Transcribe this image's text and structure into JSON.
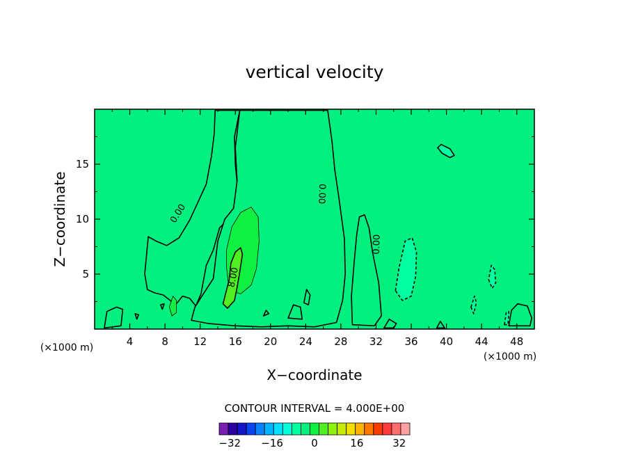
{
  "chart_data": {
    "type": "heatmap",
    "title": "vertical velocity",
    "xlabel": "X−coordinate",
    "ylabel": "Z−coordinate",
    "x_unit": "(×1000 m)",
    "y_unit": "(×1000 m)",
    "xlim": [
      0,
      50
    ],
    "ylim": [
      0,
      20
    ],
    "x_ticks": [
      4,
      8,
      12,
      16,
      20,
      24,
      28,
      32,
      36,
      40,
      44,
      48
    ],
    "y_ticks": [
      5,
      10,
      15
    ],
    "contour_interval_text": "CONTOUR INTERVAL = 4.000E+00",
    "contour_labels": [
      "0.00",
      "0.00",
      "0.00",
      "8.00"
    ],
    "colorbar": {
      "min": -36,
      "max": 36,
      "step": 4,
      "tick_values": [
        -32,
        -16,
        0,
        16,
        32
      ],
      "tick_labels": [
        "−32",
        "−16",
        "0",
        "16",
        "32"
      ],
      "colors": [
        "#7a1fb0",
        "#2a00a0",
        "#1414c8",
        "#0a46f0",
        "#0a82ff",
        "#00b4ff",
        "#00e0ff",
        "#00ffd8",
        "#00ffa0",
        "#00f080",
        "#10f040",
        "#50f020",
        "#90f010",
        "#c8ec00",
        "#f0e000",
        "#ffb400",
        "#ff7800",
        "#ff3c00",
        "#ff3c3c",
        "#ff6e6e",
        "#ffa0a0"
      ]
    },
    "field": {
      "background_value": 0,
      "features": [
        {
          "kind": "region",
          "value": 2,
          "outline": "solid",
          "points": [
            [
              16.5,
              19.9
            ],
            [
              15.9,
              17.5
            ],
            [
              16.0,
              15.0
            ],
            [
              16.3,
              12.5
            ],
            [
              16.0,
              11.0
            ],
            [
              15.2,
              10.0
            ],
            [
              14.2,
              9.2
            ],
            [
              13.5,
              7.2
            ],
            [
              12.7,
              5.8
            ],
            [
              12.1,
              3.2
            ],
            [
              11.5,
              2.1
            ],
            [
              10.8,
              2.8
            ],
            [
              10.0,
              3.0
            ],
            [
              9.2,
              2.2
            ],
            [
              8.6,
              2.6
            ],
            [
              7.8,
              3.1
            ],
            [
              6.8,
              3.3
            ],
            [
              6.0,
              3.6
            ],
            [
              5.7,
              5.0
            ],
            [
              6.1,
              8.4
            ],
            [
              7.0,
              8.0
            ],
            [
              8.2,
              7.6
            ],
            [
              9.6,
              8.3
            ],
            [
              10.8,
              9.9
            ],
            [
              11.9,
              11.8
            ],
            [
              12.7,
              13.2
            ],
            [
              13.3,
              15.8
            ],
            [
              13.6,
              17.8
            ],
            [
              13.7,
              19.9
            ]
          ]
        },
        {
          "kind": "region",
          "value": 2,
          "outline": "solid",
          "points": [
            [
              26.5,
              19.9
            ],
            [
              27.0,
              17.0
            ],
            [
              27.3,
              14.5
            ],
            [
              27.8,
              11.8
            ],
            [
              28.4,
              8.2
            ],
            [
              28.5,
              5.0
            ],
            [
              28.2,
              2.6
            ],
            [
              27.5,
              0.6
            ],
            [
              25.0,
              0.2
            ],
            [
              22.0,
              0.3
            ],
            [
              19.0,
              0.2
            ],
            [
              16.0,
              0.3
            ],
            [
              13.0,
              0.5
            ],
            [
              11.0,
              0.8
            ],
            [
              11.4,
              2.0
            ],
            [
              12.2,
              3.0
            ],
            [
              13.5,
              4.6
            ],
            [
              14.0,
              8.0
            ],
            [
              14.8,
              10.0
            ],
            [
              15.8,
              11.0
            ],
            [
              16.2,
              13.5
            ],
            [
              16.0,
              16.5
            ],
            [
              16.5,
              19.9
            ]
          ]
        },
        {
          "kind": "region",
          "value": 2,
          "outline": "solid",
          "points": [
            [
              30.1,
              10.2
            ],
            [
              29.8,
              8.6
            ],
            [
              29.5,
              6.0
            ],
            [
              29.2,
              3.0
            ],
            [
              29.3,
              0.4
            ],
            [
              31.8,
              0.3
            ],
            [
              32.6,
              1.2
            ],
            [
              32.3,
              4.2
            ],
            [
              31.6,
              7.0
            ],
            [
              31.2,
              9.2
            ],
            [
              30.7,
              10.4
            ]
          ]
        },
        {
          "kind": "region",
          "value": 6,
          "outline": "thin",
          "points": [
            [
              15.2,
              4.2
            ],
            [
              15.8,
              3.4
            ],
            [
              16.6,
              3.2
            ],
            [
              17.8,
              4.0
            ],
            [
              18.4,
              5.5
            ],
            [
              18.7,
              8.0
            ],
            [
              18.6,
              10.2
            ],
            [
              17.8,
              11.1
            ],
            [
              16.6,
              10.6
            ],
            [
              15.6,
              9.3
            ],
            [
              15.0,
              7.2
            ],
            [
              15.0,
              5.6
            ]
          ]
        },
        {
          "kind": "region",
          "value": 10,
          "outline": "solid",
          "points": [
            [
              14.6,
              2.3
            ],
            [
              15.1,
              1.9
            ],
            [
              15.9,
              2.6
            ],
            [
              16.2,
              3.8
            ],
            [
              16.5,
              5.2
            ],
            [
              16.8,
              6.8
            ],
            [
              16.6,
              7.4
            ],
            [
              16.0,
              7.0
            ],
            [
              15.5,
              6.0
            ],
            [
              15.3,
              4.5
            ]
          ]
        },
        {
          "kind": "region",
          "value": 6,
          "outline": "thin",
          "points": [
            [
              8.5,
              2.0
            ],
            [
              8.8,
              1.2
            ],
            [
              9.3,
              1.5
            ],
            [
              9.3,
              2.6
            ],
            [
              8.9,
              3.0
            ]
          ]
        },
        {
          "kind": "region",
          "value": 6,
          "outline": "thin",
          "points": [
            [
              47.9,
              1.2
            ],
            [
              48.4,
              0.9
            ],
            [
              48.6,
              1.5
            ],
            [
              48.2,
              2.0
            ]
          ]
        },
        {
          "kind": "region",
          "value": 2,
          "outline": "solid",
          "points": [
            [
              47.1,
              0.3
            ],
            [
              47.4,
              1.7
            ],
            [
              48.1,
              2.3
            ],
            [
              49.2,
              2.1
            ],
            [
              49.7,
              1.0
            ],
            [
              49.5,
              0.3
            ]
          ]
        },
        {
          "kind": "region",
          "value": -2,
          "outline": "dashed",
          "points": [
            [
              34.2,
              3.5
            ],
            [
              34.6,
              5.5
            ],
            [
              35.3,
              8.0
            ],
            [
              36.1,
              8.3
            ],
            [
              36.6,
              7.0
            ],
            [
              36.5,
              4.8
            ],
            [
              36.0,
              3.0
            ],
            [
              35.0,
              2.6
            ]
          ]
        },
        {
          "kind": "region",
          "value": -2,
          "outline": "solid",
          "points": [
            [
              39.0,
              16.5
            ],
            [
              39.5,
              16.0
            ],
            [
              40.4,
              15.6
            ],
            [
              40.9,
              15.8
            ],
            [
              40.4,
              16.4
            ],
            [
              39.4,
              16.8
            ]
          ]
        },
        {
          "kind": "region",
          "value": -2,
          "outline": "dashed",
          "points": [
            [
              44.8,
              4.5
            ],
            [
              45.2,
              3.7
            ],
            [
              45.6,
              4.2
            ],
            [
              45.5,
              5.4
            ],
            [
              45.1,
              5.8
            ]
          ]
        },
        {
          "kind": "region",
          "value": -2,
          "outline": "dashed",
          "points": [
            [
              42.8,
              2.0
            ],
            [
              43.1,
              1.4
            ],
            [
              43.4,
              2.4
            ],
            [
              43.2,
              3.0
            ]
          ]
        },
        {
          "kind": "region",
          "value": -2,
          "outline": "dashed",
          "points": [
            [
              46.6,
              0.4
            ],
            [
              46.8,
              1.5
            ],
            [
              47.1,
              1.6
            ],
            [
              47.0,
              0.4
            ]
          ]
        },
        {
          "kind": "region",
          "value": 2,
          "outline": "solid",
          "points": [
            [
              1.1,
              0.1
            ],
            [
              1.4,
              1.6
            ],
            [
              2.5,
              2.0
            ],
            [
              3.2,
              1.8
            ],
            [
              3.0,
              0.3
            ]
          ]
        },
        {
          "kind": "region",
          "value": 2,
          "outline": "solid",
          "points": [
            [
              32.9,
              0.1
            ],
            [
              33.5,
              0.9
            ],
            [
              34.3,
              0.5
            ],
            [
              34.0,
              0.1
            ]
          ]
        },
        {
          "kind": "region",
          "value": 2,
          "outline": "solid",
          "points": [
            [
              38.9,
              0.1
            ],
            [
              39.3,
              0.7
            ],
            [
              39.8,
              0.1
            ]
          ]
        },
        {
          "kind": "region",
          "value": 2,
          "outline": "solid",
          "points": [
            [
              19.2,
              1.2
            ],
            [
              19.5,
              1.7
            ],
            [
              19.8,
              1.4
            ]
          ]
        },
        {
          "kind": "region",
          "value": 2,
          "outline": "solid",
          "points": [
            [
              22.0,
              1.0
            ],
            [
              22.6,
              2.2
            ],
            [
              23.4,
              2.0
            ],
            [
              23.6,
              0.9
            ]
          ]
        },
        {
          "kind": "region",
          "value": 2,
          "outline": "solid",
          "points": [
            [
              23.8,
              2.4
            ],
            [
              24.1,
              3.6
            ],
            [
              24.5,
              3.1
            ],
            [
              24.3,
              2.2
            ]
          ]
        },
        {
          "kind": "region",
          "value": 2,
          "outline": "solid",
          "points": [
            [
              4.6,
              1.4
            ],
            [
              4.8,
              0.9
            ],
            [
              5.0,
              1.3
            ]
          ]
        },
        {
          "kind": "region",
          "value": 2,
          "outline": "solid",
          "points": [
            [
              7.5,
              2.2
            ],
            [
              7.7,
              1.8
            ],
            [
              7.9,
              2.3
            ]
          ]
        }
      ],
      "contour_label_positions": [
        {
          "text": "0.00",
          "x": 9.5,
          "y": 10.5,
          "angle": -58
        },
        {
          "text": "0.00",
          "x": 25.8,
          "y": 12.3,
          "angle": 92
        },
        {
          "text": "0.00",
          "x": 32.1,
          "y": 7.7,
          "angle": -88
        },
        {
          "text": "8.00",
          "x": 15.8,
          "y": 4.7,
          "angle": -78
        }
      ]
    }
  }
}
